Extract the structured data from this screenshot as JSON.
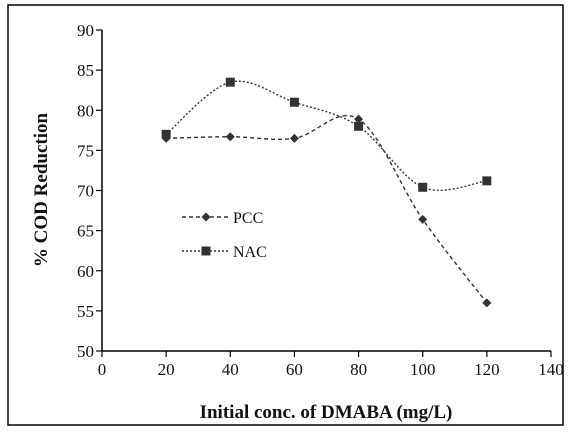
{
  "chart_data": {
    "type": "line",
    "title": "",
    "xlabel": "Initial conc. of DMABA (mg/L)",
    "ylabel": "% COD Reduction",
    "xlim": [
      0,
      140
    ],
    "ylim": [
      50,
      90
    ],
    "xticks": [
      0,
      20,
      40,
      60,
      80,
      100,
      120,
      140
    ],
    "yticks": [
      50,
      55,
      60,
      65,
      70,
      75,
      80,
      85,
      90
    ],
    "grid": false,
    "legend_position": "center-left",
    "series": [
      {
        "name": "PCC",
        "marker": "diamond",
        "line_style": "dashed",
        "color": "#333333",
        "x": [
          20,
          40,
          60,
          80,
          100,
          120
        ],
        "y": [
          76.5,
          76.7,
          76.5,
          78.9,
          66.4,
          56.0
        ]
      },
      {
        "name": "NAC",
        "marker": "square",
        "line_style": "dotted",
        "color": "#333333",
        "x": [
          20,
          40,
          60,
          80,
          100,
          120
        ],
        "y": [
          77.0,
          83.5,
          81.0,
          78.0,
          70.4,
          71.2
        ]
      }
    ]
  }
}
